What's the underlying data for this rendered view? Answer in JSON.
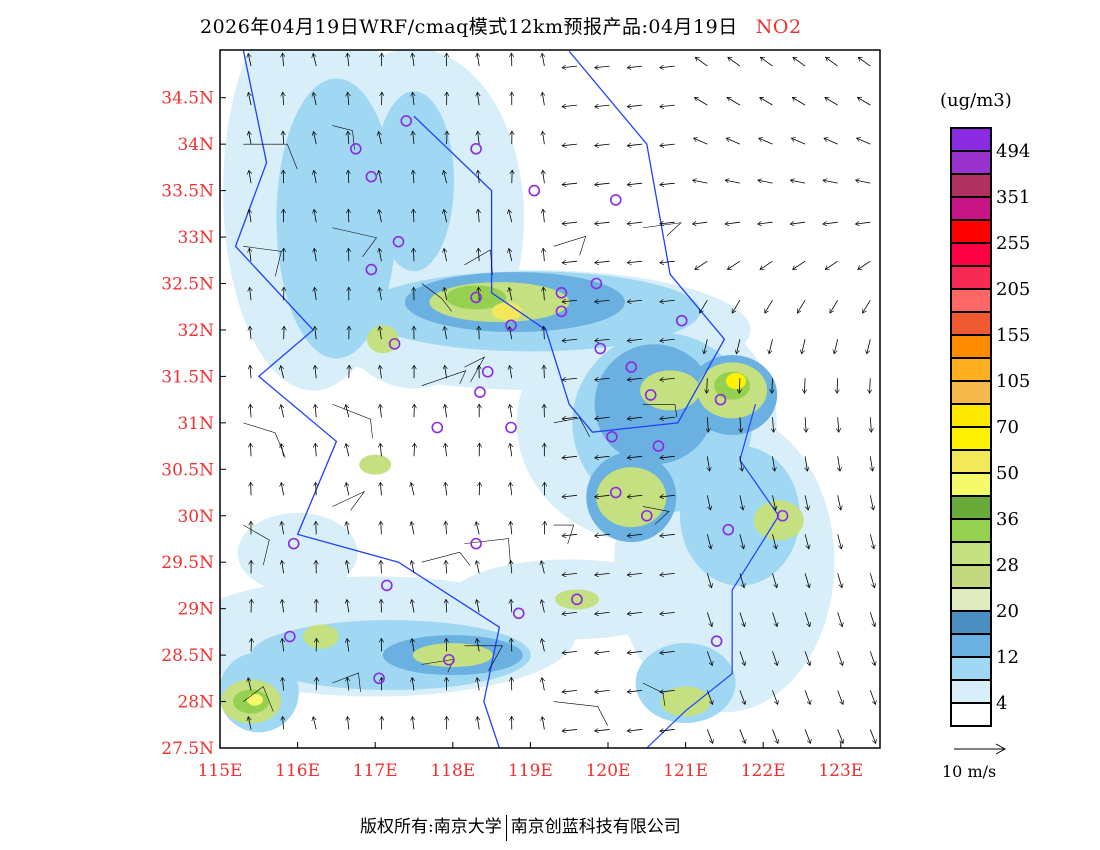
{
  "title": {
    "main": "2026年04月19日WRF/cmaq模式12km预报产品:04月19日",
    "species": "NO2"
  },
  "axes": {
    "lon_ticks": [
      "115E",
      "116E",
      "117E",
      "118E",
      "119E",
      "120E",
      "121E",
      "122E",
      "123E"
    ],
    "lat_ticks": [
      "34.5N",
      "34N",
      "33.5N",
      "33N",
      "32.5N",
      "32N",
      "31.5N",
      "31N",
      "30.5N",
      "30N",
      "29.5N",
      "29N",
      "28.5N",
      "28N",
      "27.5N"
    ],
    "lon_range": [
      115,
      123.5
    ],
    "lat_range": [
      27.5,
      35
    ]
  },
  "legend": {
    "unit": "(ug/m3)",
    "colors": [
      "#8a2be2",
      "#9932cc",
      "#b03060",
      "#c71585",
      "#ff0000",
      "#ff0044",
      "#f72a55",
      "#ff6666",
      "#f05a30",
      "#ff8c00",
      "#ffb020",
      "#f5b84a",
      "#ffe800",
      "#fff200",
      "#f2e85a",
      "#f5fa6a",
      "#6aaa3a",
      "#96d050",
      "#c4e080",
      "#c4d880",
      "#e0ecc0",
      "#4a8ec2",
      "#6ab0e0",
      "#a0d8f4",
      "#d8eef8",
      "#ffffff"
    ],
    "labels": [
      "494",
      "351",
      "255",
      "205",
      "155",
      "105",
      "70",
      "50",
      "36",
      "28",
      "20",
      "12",
      "4"
    ],
    "wind_reference": "10 m/s"
  },
  "footer": {
    "copyright": "版权所有:南京大学",
    "company": "南京创蓝科技有限公司"
  }
}
